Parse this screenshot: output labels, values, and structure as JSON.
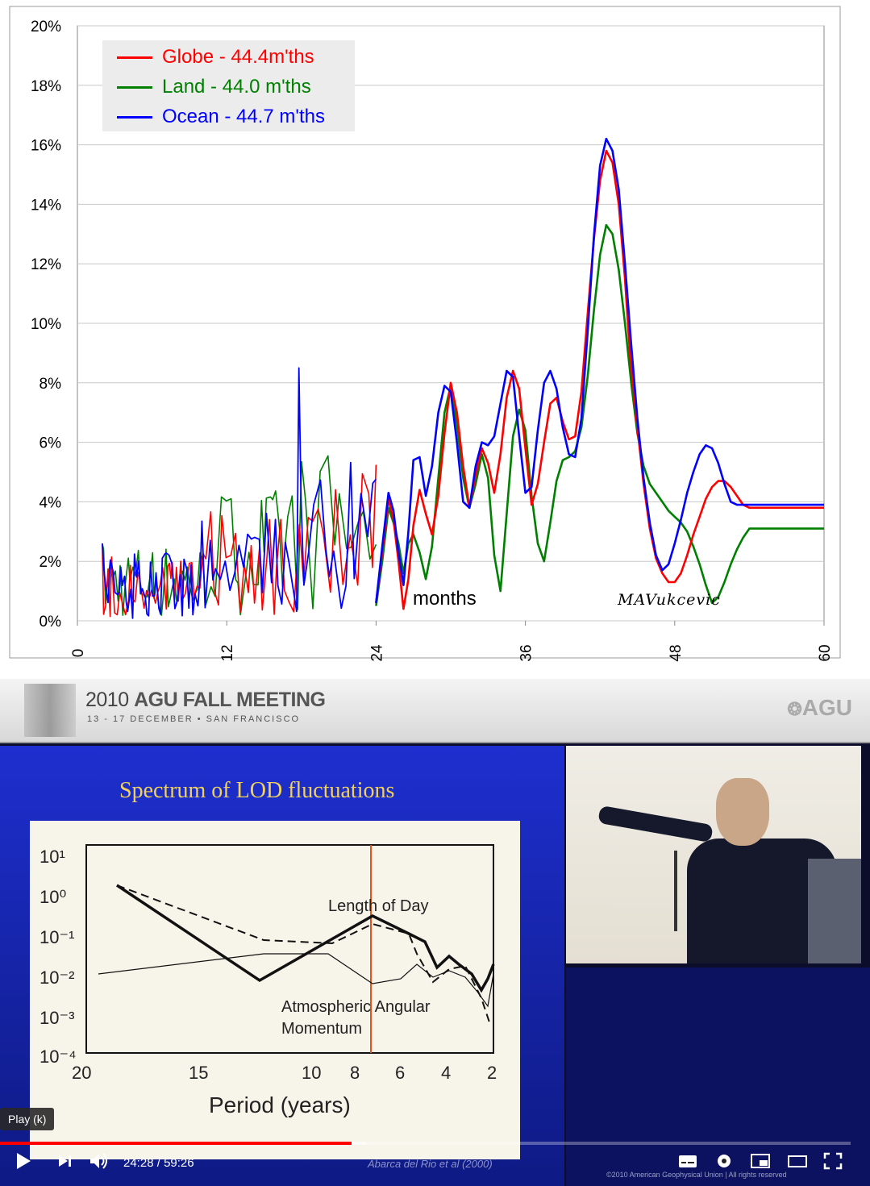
{
  "chart_data": {
    "type": "line",
    "xlabel": "months",
    "signature": "MAVukcevic",
    "x_ticks": [
      "0",
      "12",
      "24",
      "36",
      "48",
      "60"
    ],
    "y_ticks": [
      "0%",
      "2%",
      "4%",
      "6%",
      "8%",
      "10%",
      "12%",
      "14%",
      "16%",
      "18%",
      "20%"
    ],
    "xlim": [
      0,
      60
    ],
    "ylim": [
      0,
      20
    ],
    "y_unit": "%",
    "grid": "horizontal",
    "legend_position": "top-left",
    "series": [
      {
        "name": "Globe - 44.4m'ths",
        "color": "#ff0000",
        "x": [
          24.0,
          24.5,
          25.0,
          25.4,
          25.8,
          26.2,
          26.6,
          27.0,
          27.5,
          28.0,
          28.5,
          29.0,
          29.5,
          30.0,
          30.5,
          31.0,
          31.5,
          32.0,
          32.5,
          33.0,
          33.5,
          34.0,
          34.5,
          35.0,
          35.5,
          36.0,
          36.5,
          37.0,
          37.5,
          38.0,
          38.5,
          39.0,
          39.5,
          40.0,
          40.5,
          41.0,
          41.5,
          42.0,
          42.5,
          43.0,
          43.5,
          44.0,
          44.4,
          45.0,
          45.5,
          46.0,
          46.5,
          47.0,
          47.5,
          48.0,
          48.5,
          49.0,
          49.5,
          50.0,
          50.5,
          51.0,
          51.5,
          52.0,
          52.5,
          53.0,
          53.5,
          54.0,
          54.5,
          55.0,
          55.5,
          56.0,
          56.5,
          57.0,
          57.5,
          58.0,
          58.5,
          59.0,
          59.5,
          60.0
        ],
        "y": [
          0.6,
          2.3,
          4.1,
          3.4,
          2.0,
          0.4,
          1.4,
          3.2,
          4.4,
          3.6,
          2.9,
          4.2,
          6.3,
          8.0,
          7.0,
          5.2,
          3.8,
          4.9,
          5.8,
          5.3,
          4.3,
          5.6,
          7.5,
          8.4,
          7.8,
          5.8,
          3.9,
          4.6,
          6.0,
          7.3,
          7.5,
          6.7,
          6.1,
          6.2,
          7.7,
          10.3,
          12.8,
          14.8,
          15.8,
          15.4,
          14.0,
          11.5,
          9.0,
          6.5,
          4.6,
          3.1,
          2.1,
          1.6,
          1.3,
          1.3,
          1.6,
          2.2,
          2.9,
          3.5,
          4.1,
          4.5,
          4.7,
          4.7,
          4.5,
          4.2,
          3.9,
          3.8,
          3.8,
          3.8,
          3.8,
          3.8,
          3.8,
          3.8,
          3.8,
          3.8,
          3.8,
          3.8,
          3.8,
          3.8
        ]
      },
      {
        "name": "Land - 44.0 m'ths",
        "color": "#008000",
        "x": [
          24.0,
          24.5,
          25.0,
          25.4,
          25.8,
          26.2,
          26.6,
          27.0,
          27.5,
          28.0,
          28.5,
          29.0,
          29.5,
          30.0,
          30.5,
          31.0,
          31.5,
          32.0,
          32.5,
          33.0,
          33.5,
          34.0,
          34.5,
          35.0,
          35.5,
          36.0,
          36.5,
          37.0,
          37.5,
          38.0,
          38.5,
          39.0,
          39.5,
          40.0,
          40.5,
          41.0,
          41.5,
          42.0,
          42.5,
          43.0,
          43.5,
          44.0,
          44.5,
          45.0,
          45.5,
          46.0,
          46.5,
          47.0,
          47.5,
          48.0,
          48.5,
          49.0,
          49.5,
          50.0,
          50.5,
          51.0,
          51.5,
          52.0,
          52.5,
          53.0,
          53.5,
          54.0,
          54.5,
          55.0,
          55.5,
          56.0,
          56.5,
          57.0,
          57.5,
          58.0,
          58.5,
          59.0,
          59.5,
          60.0
        ],
        "y": [
          0.5,
          2.0,
          3.8,
          3.3,
          2.6,
          1.6,
          2.6,
          2.9,
          2.3,
          1.4,
          2.5,
          4.8,
          7.0,
          7.9,
          6.6,
          4.8,
          3.8,
          4.6,
          5.6,
          4.8,
          2.2,
          1.0,
          3.6,
          6.2,
          7.1,
          6.4,
          4.2,
          2.6,
          2.0,
          3.3,
          4.7,
          5.4,
          5.5,
          5.7,
          6.5,
          8.2,
          10.4,
          12.3,
          13.3,
          13.0,
          11.8,
          10.0,
          8.0,
          6.3,
          5.2,
          4.6,
          4.3,
          4.0,
          3.7,
          3.5,
          3.3,
          3.0,
          2.5,
          1.9,
          1.2,
          0.6,
          0.8,
          1.3,
          1.9,
          2.4,
          2.8,
          3.1,
          3.1,
          3.1,
          3.1,
          3.1,
          3.1,
          3.1,
          3.1,
          3.1,
          3.1,
          3.1,
          3.1,
          3.1
        ]
      },
      {
        "name": "Ocean - 44.7 m'ths",
        "color": "#0000ff",
        "x": [
          24.0,
          24.5,
          25.0,
          25.4,
          25.8,
          26.2,
          26.6,
          27.0,
          27.5,
          28.0,
          28.5,
          29.0,
          29.5,
          30.0,
          30.5,
          31.0,
          31.5,
          32.0,
          32.5,
          33.0,
          33.5,
          34.0,
          34.5,
          35.0,
          35.5,
          36.0,
          36.5,
          37.0,
          37.5,
          38.0,
          38.5,
          39.0,
          39.5,
          40.0,
          40.5,
          41.0,
          41.5,
          42.0,
          42.5,
          43.0,
          43.5,
          44.0,
          44.5,
          45.0,
          45.5,
          46.0,
          46.5,
          47.0,
          47.5,
          48.0,
          48.5,
          49.0,
          49.5,
          50.0,
          50.5,
          51.0,
          51.5,
          52.0,
          52.5,
          53.0,
          53.5,
          54.0,
          54.5,
          55.0,
          55.5,
          56.0,
          56.5,
          57.0,
          57.5,
          58.0,
          58.5,
          59.0,
          59.5,
          60.0
        ],
        "y": [
          0.6,
          2.5,
          4.3,
          3.7,
          2.3,
          1.2,
          3.0,
          5.4,
          5.5,
          4.2,
          5.2,
          7.0,
          7.9,
          7.7,
          6.0,
          4.0,
          3.8,
          5.2,
          6.0,
          5.9,
          6.2,
          7.3,
          8.4,
          8.2,
          6.2,
          4.3,
          4.5,
          6.4,
          8.0,
          8.4,
          7.8,
          6.5,
          5.6,
          5.5,
          6.8,
          9.7,
          12.9,
          15.3,
          16.2,
          15.8,
          14.5,
          12.0,
          9.3,
          6.8,
          4.8,
          3.3,
          2.2,
          1.7,
          1.9,
          2.6,
          3.4,
          4.3,
          5.0,
          5.6,
          5.9,
          5.8,
          5.3,
          4.6,
          4.0,
          3.9,
          3.9,
          3.9,
          3.9,
          3.9,
          3.9,
          3.9,
          3.9,
          3.9,
          3.9,
          3.9,
          3.9,
          3.9,
          3.9,
          3.9
        ]
      }
    ]
  },
  "video": {
    "banner_title_prefix": "2010",
    "banner_title_bold": "AGU FALL MEETING",
    "banner_subtitle": "13 - 17 DECEMBER • SAN FRANCISCO",
    "agu_logo": "AGU",
    "slide_title": "Spectrum of LOD fluctuations",
    "slide_chart": {
      "type": "line",
      "xlabel": "Period (years)",
      "x_ticks": [
        "20",
        "15",
        "10",
        "8",
        "6",
        "4",
        "2"
      ],
      "y_ticks": [
        "10¹",
        "10⁰",
        "10⁻¹",
        "10⁻²",
        "10⁻³",
        "10⁻⁴"
      ],
      "annotations": [
        "Length of Day",
        "Atmospheric Angular",
        "Momentum"
      ]
    },
    "slide_credit": "Abarca del Rio et al (2000)",
    "speaker_footer": "©2010 American Geophysical Union | All rights reserved",
    "tooltip": "Play (k)",
    "progress_fraction": 0.413,
    "buffer_fraction": 0.43,
    "time_current": "24:28",
    "time_total": "59:26",
    "icons": [
      "play-icon",
      "next-icon",
      "volume-icon",
      "subtitles-icon",
      "settings-icon",
      "miniplayer-icon",
      "theater-icon",
      "fullscreen-icon"
    ]
  }
}
